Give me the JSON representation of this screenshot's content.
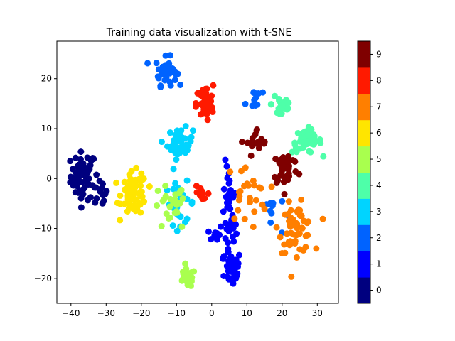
{
  "chart_data": {
    "type": "scatter",
    "title": "Training data visualization with t-SNE",
    "xlabel": "",
    "ylabel": "",
    "xlim": [
      -44,
      36
    ],
    "ylim": [
      -25,
      27.5
    ],
    "xticks": [
      -40,
      -30,
      -20,
      -10,
      0,
      10,
      20,
      30
    ],
    "yticks": [
      -20,
      -10,
      0,
      10,
      20
    ],
    "grid": false,
    "colorbar": {
      "ticks": [
        0,
        1,
        2,
        3,
        4,
        5,
        6,
        7,
        8,
        9
      ],
      "colors": [
        "#00007f",
        "#0000ff",
        "#0063ff",
        "#00d4ff",
        "#4effa9",
        "#a9ff4e",
        "#ffe500",
        "#ff7f00",
        "#ff1a00",
        "#7f0000"
      ]
    },
    "clusters": [
      {
        "label": 0,
        "center": [
          -36.5,
          0.5
        ],
        "spread": [
          3.0,
          4.0
        ],
        "n": 60
      },
      {
        "label": 0,
        "center": [
          -32,
          -3
        ],
        "spread": [
          2.0,
          2.5
        ],
        "n": 15
      },
      {
        "label": 1,
        "center": [
          5,
          -8
        ],
        "spread": [
          1.6,
          9.0
        ],
        "n": 45
      },
      {
        "label": 1,
        "center": [
          6,
          -18
        ],
        "spread": [
          2.0,
          3.0
        ],
        "n": 40
      },
      {
        "label": 1,
        "center": [
          1,
          -11
        ],
        "spread": [
          1.8,
          1.5
        ],
        "n": 10
      },
      {
        "label": 2,
        "center": [
          -13,
          21.5
        ],
        "spread": [
          2.5,
          2.3
        ],
        "n": 40
      },
      {
        "label": 2,
        "center": [
          12,
          16
        ],
        "spread": [
          2.0,
          2.5
        ],
        "n": 10
      },
      {
        "label": 2,
        "center": [
          17,
          -7
        ],
        "spread": [
          3.0,
          4.0
        ],
        "n": 10
      },
      {
        "label": 3,
        "center": [
          -9,
          7
        ],
        "spread": [
          3.0,
          2.5
        ],
        "n": 45
      },
      {
        "label": 3,
        "center": [
          -9,
          -5
        ],
        "spread": [
          3.5,
          3.5
        ],
        "n": 25
      },
      {
        "label": 4,
        "center": [
          27,
          7.5
        ],
        "spread": [
          3.5,
          2.0
        ],
        "n": 45
      },
      {
        "label": 4,
        "center": [
          20,
          15
        ],
        "spread": [
          2.5,
          3.0
        ],
        "n": 20
      },
      {
        "label": 5,
        "center": [
          -7,
          -20
        ],
        "spread": [
          2.0,
          1.5
        ],
        "n": 25
      },
      {
        "label": 5,
        "center": [
          -12,
          -6
        ],
        "spread": [
          4.0,
          4.0
        ],
        "n": 25
      },
      {
        "label": 6,
        "center": [
          -22,
          -3
        ],
        "spread": [
          3.0,
          3.5
        ],
        "n": 70
      },
      {
        "label": 7,
        "center": [
          24,
          -10
        ],
        "spread": [
          4.0,
          4.0
        ],
        "n": 60
      },
      {
        "label": 7,
        "center": [
          10,
          -3
        ],
        "spread": [
          5.0,
          5.0
        ],
        "n": 25
      },
      {
        "label": 8,
        "center": [
          -2,
          15
        ],
        "spread": [
          2.0,
          3.0
        ],
        "n": 45
      },
      {
        "label": 8,
        "center": [
          -3,
          -3
        ],
        "spread": [
          2.0,
          3.0
        ],
        "n": 12
      },
      {
        "label": 9,
        "center": [
          21,
          2
        ],
        "spread": [
          3.0,
          3.0
        ],
        "n": 40
      },
      {
        "label": 9,
        "center": [
          13,
          7
        ],
        "spread": [
          2.5,
          2.5
        ],
        "n": 20
      }
    ]
  }
}
